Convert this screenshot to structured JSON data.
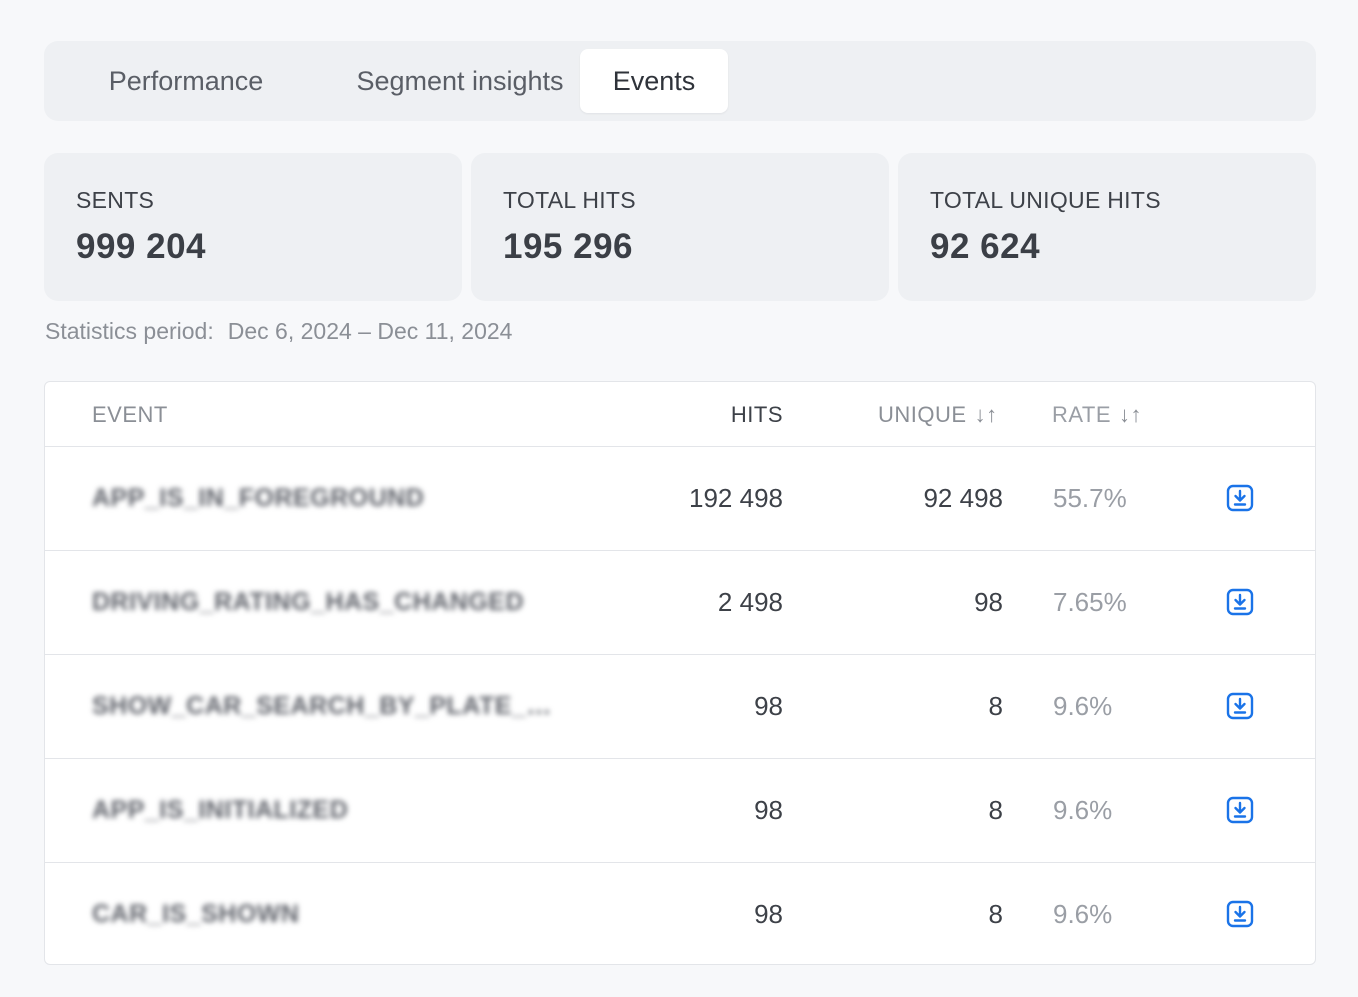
{
  "tabs": [
    {
      "label": "Performance",
      "active": false
    },
    {
      "label": "Segment insights",
      "active": false
    },
    {
      "label": "Events",
      "active": true
    }
  ],
  "stats": [
    {
      "label": "SENTS",
      "value": "999 204"
    },
    {
      "label": "TOTAL HITS",
      "value": "195 296"
    },
    {
      "label": "TOTAL UNIQUE HITS",
      "value": "92 624"
    }
  ],
  "period": {
    "label": "Statistics period:",
    "value": "Dec 6, 2024 – Dec 11, 2024"
  },
  "table": {
    "headers": {
      "event": "EVENT",
      "hits": "HITS",
      "unique": "UNIQUE",
      "rate": "RATE",
      "sort_icon": "↓↑"
    },
    "rows": [
      {
        "event": "APP_IS_IN_FOREGROUND",
        "hits": "192 498",
        "unique": "92 498",
        "rate": "55.7%"
      },
      {
        "event": "DRIVING_RATING_HAS_CHANGED",
        "hits": "2 498",
        "unique": "98",
        "rate": "7.65%"
      },
      {
        "event": "SHOW_CAR_SEARCH_BY_PLATE_NUMBER",
        "hits": "98",
        "unique": "8",
        "rate": "9.6%"
      },
      {
        "event": "APP_IS_INITIALIZED",
        "hits": "98",
        "unique": "8",
        "rate": "9.6%"
      },
      {
        "event": "CAR_IS_SHOWN",
        "hits": "98",
        "unique": "8",
        "rate": "9.6%"
      }
    ]
  },
  "icons": {
    "download": "download-icon",
    "sort": "sort-icon"
  },
  "colors": {
    "accent": "#1a73e8",
    "card_bg": "#eef0f3",
    "page_bg": "#f7f8fa"
  }
}
